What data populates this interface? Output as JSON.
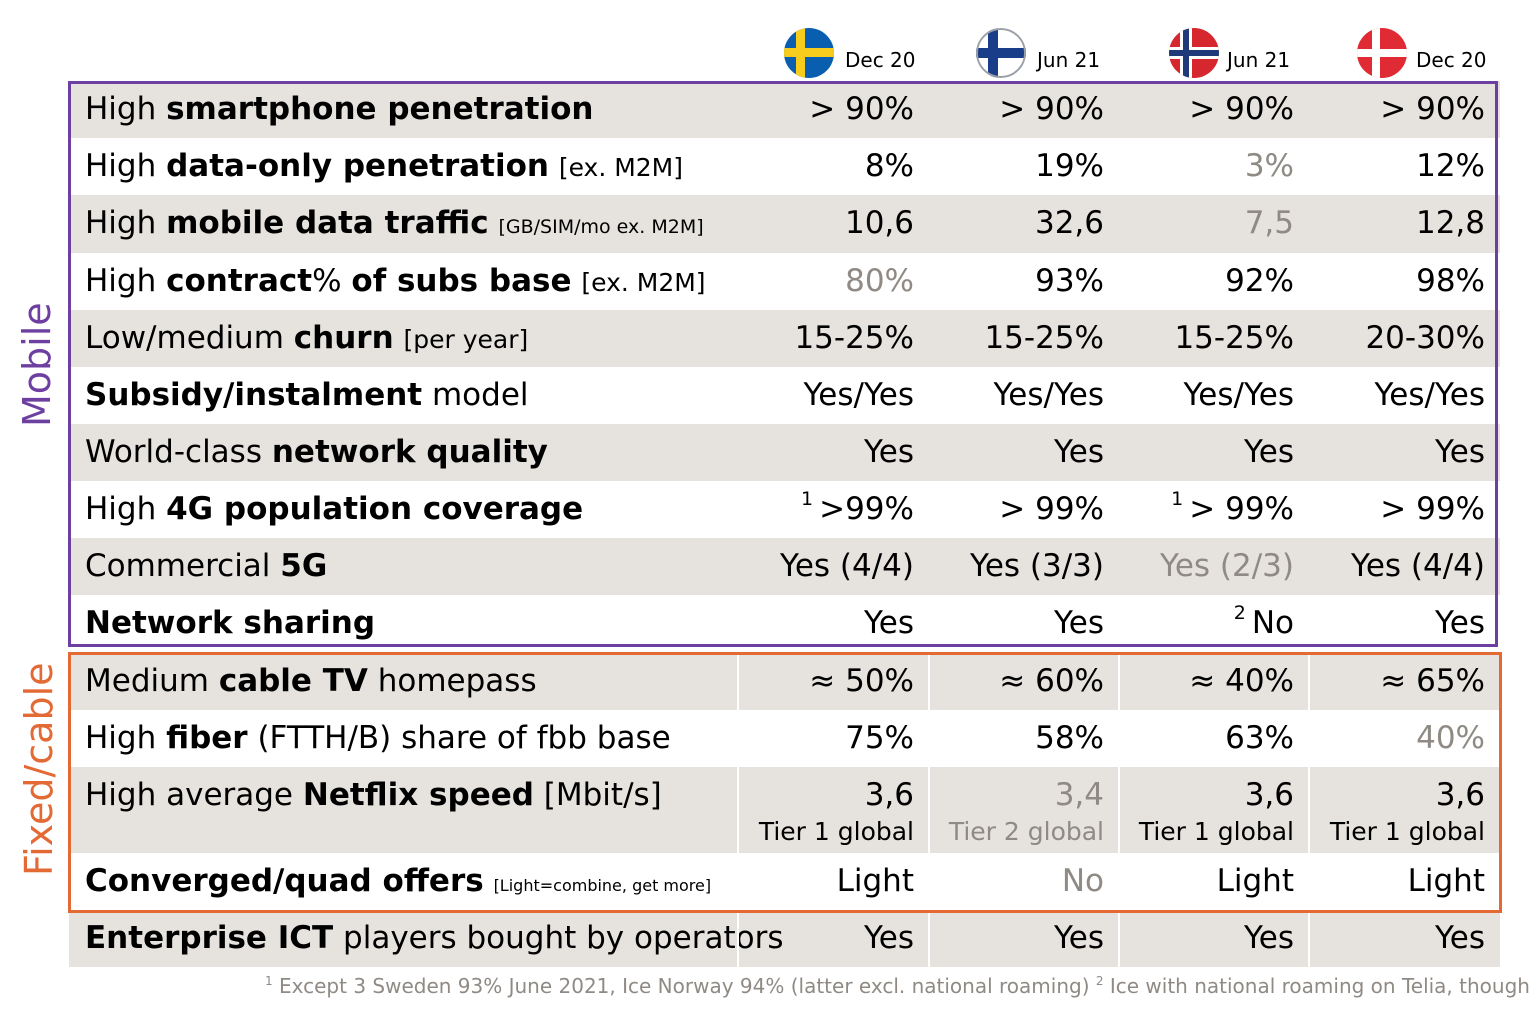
{
  "columns": [
    {
      "country": "Sweden",
      "flag": "sweden-flag-icon",
      "date": "Dec 20"
    },
    {
      "country": "Finland",
      "flag": "finland-flag-icon",
      "date": "Jun 21"
    },
    {
      "country": "Norway",
      "flag": "norway-flag-icon",
      "date": "Jun 21"
    },
    {
      "country": "Denmark",
      "flag": "denmark-flag-icon",
      "date": "Dec 20"
    }
  ],
  "groups": {
    "mobile": "Mobile",
    "fixed": "Fixed/cable"
  },
  "colors": {
    "mobile": "#6c3fa0",
    "fixed": "#e36a35",
    "stripe": "#e6e3de",
    "dim": "#8f8a84"
  },
  "rows": [
    {
      "pre": "High ",
      "bold": "smartphone penetration",
      "post": "",
      "note": "",
      "v": [
        "> 90%",
        "> 90%",
        "> 90%",
        "> 90%"
      ]
    },
    {
      "pre": "High ",
      "bold": "data-only penetration",
      "post": " ",
      "note": "[ex. M2M]",
      "v": [
        "8%",
        "19%",
        "3%",
        "12%"
      ]
    },
    {
      "pre": "High ",
      "bold": "mobile data traffic",
      "post": " ",
      "note": "[GB/SIM/mo ex. M2M]",
      "v": [
        "10,6",
        "32,6",
        "7,5",
        "12,8"
      ]
    },
    {
      "pre": "High ",
      "bold": "contract",
      "post": "% ",
      "bold2": "of subs base",
      "note": "[ex. M2M]",
      "v": [
        "80%",
        "93%",
        "92%",
        "98%"
      ]
    },
    {
      "pre": "Low/medium ",
      "bold": "churn",
      "post": " ",
      "note": "[per year]",
      "v": [
        "15-25%",
        "15-25%",
        "15-25%",
        "20-30%"
      ]
    },
    {
      "pre": "",
      "bold": "Subsidy/instalment",
      "post": " model",
      "note": "",
      "v": [
        "Yes/Yes",
        "Yes/Yes",
        "Yes/Yes",
        "Yes/Yes"
      ]
    },
    {
      "pre": "World-class ",
      "bold": "network quality",
      "post": "",
      "note": "",
      "v": [
        "Yes",
        "Yes",
        "Yes",
        "Yes"
      ]
    },
    {
      "pre": "High ",
      "bold": "4G population coverage",
      "post": "",
      "note": "",
      "v": [
        ">99%",
        "> 99%",
        "> 99%",
        "> 99%"
      ],
      "sup": [
        "1",
        "",
        "1",
        ""
      ]
    },
    {
      "pre": "Commercial ",
      "bold": "5G",
      "post": "",
      "note": "",
      "v": [
        "Yes (4/4)",
        "Yes (3/3)",
        "Yes (2/3)",
        "Yes (4/4)"
      ]
    },
    {
      "pre": "",
      "bold": "Network sharing",
      "post": "",
      "note": "",
      "v": [
        "Yes",
        "Yes",
        "No",
        "Yes"
      ],
      "sup": [
        "",
        "",
        "2",
        ""
      ]
    },
    {
      "pre": "Medium ",
      "bold": "cable TV",
      "post": " homepass",
      "note": "",
      "v": [
        "≈ 50%",
        "≈ 60%",
        "≈ 40%",
        "≈ 65%"
      ]
    },
    {
      "pre": "High ",
      "bold": "fiber",
      "post": " (FTTH/B) share of fbb base",
      "note": "",
      "v": [
        "75%",
        "58%",
        "63%",
        "40%"
      ]
    },
    {
      "pre": "High average ",
      "bold": "Netflix speed",
      "post": " [Mbit/s]",
      "note": "",
      "v": [
        "3,6",
        "3,4",
        "3,6",
        "3,6"
      ],
      "sub": [
        "Tier 1 global",
        "Tier 2 global",
        "Tier 1 global",
        "Tier 1 global"
      ]
    },
    {
      "pre": "",
      "bold": "Converged/quad offers",
      "post": " ",
      "note": "[Light=combine,  get more]",
      "v": [
        "Light",
        "No",
        "Light",
        "Light"
      ]
    },
    {
      "pre": "",
      "bold": "Enterprise ICT",
      "post": " players bought by operators",
      "note": "",
      "v": [
        "Yes",
        "Yes",
        "Yes",
        "Yes"
      ]
    }
  ],
  "footnote": {
    "n1": "1",
    "t1": " Except 3 Sweden 93% June 2021, Ice Norway 94% (latter excl. national roaming) ",
    "n2": "2",
    "t2": " Ice with national roaming on Telia, though"
  }
}
